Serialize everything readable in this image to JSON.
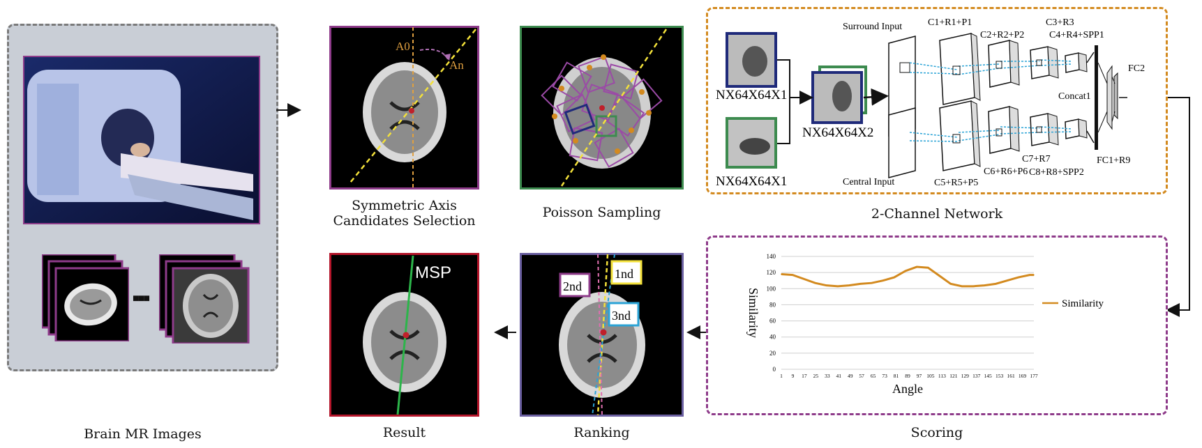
{
  "captions": {
    "brain_mr": "Brain MR Images",
    "symmetric_line1": "Symmetric Axis",
    "symmetric_line2": "Candidates Selection",
    "poisson": "Poisson Sampling",
    "network": "2-Channel Network",
    "scoring": "Scoring",
    "ranking": "Ranking",
    "result": "Result"
  },
  "axis_labels": {
    "a0": "A0",
    "an": "An"
  },
  "network": {
    "surround_input": "Surround Input",
    "central_input": "Central Input",
    "patch_top": "NX64X64X1",
    "patch_bottom": "NX64X64X1",
    "patch_merged": "NX64X64X2",
    "c1": "C1+R1+P1",
    "c2": "C2+R2+P2",
    "c3": "C3+R3",
    "c4": "C4+R4+SPP1",
    "c5": "C5+R5+P5",
    "c6": "C6+R6+P6",
    "c7": "C7+R7",
    "c8": "C8+R8+SPP2",
    "concat": "Concat1",
    "fc1": "FC1+R9",
    "fc2": "FC2"
  },
  "ranking": {
    "first": "1nd",
    "second": "2nd",
    "third": "3nd"
  },
  "result": {
    "label": "MSP"
  },
  "ellipsis": "■■■",
  "colors": {
    "purple": "#8e3b8a",
    "green": "#3d8b4f",
    "red": "#b3152a",
    "navy": "#1f2a7a",
    "orange": "#d38a1f",
    "slate": "#6a5fa0"
  },
  "chart_data": {
    "type": "line",
    "xlabel": "Angle",
    "ylabel": "Similarity",
    "ylim": [
      0,
      140
    ],
    "yticks": [
      0,
      20,
      40,
      60,
      80,
      100,
      120,
      140
    ],
    "xticks": [
      "1",
      "9",
      "17",
      "25",
      "33",
      "41",
      "49",
      "57",
      "65",
      "73",
      "81",
      "89",
      "97",
      "105",
      "113",
      "121",
      "129",
      "137",
      "145",
      "153",
      "161",
      "169",
      "177"
    ],
    "series": [
      {
        "name": "Similarity",
        "x": [
          1,
          9,
          17,
          25,
          33,
          41,
          49,
          57,
          65,
          73,
          81,
          89,
          97,
          105,
          113,
          121,
          129,
          137,
          145,
          153,
          161,
          169,
          177,
          180
        ],
        "values": [
          118,
          117,
          112,
          107,
          104,
          103,
          104,
          106,
          107,
          110,
          114,
          122,
          127,
          126,
          116,
          106,
          103,
          103,
          104,
          106,
          110,
          114,
          117,
          117
        ]
      }
    ]
  }
}
